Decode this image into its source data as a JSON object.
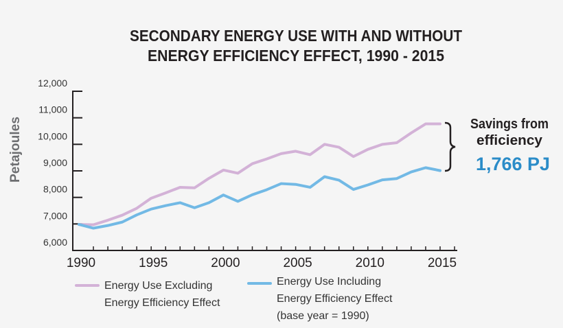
{
  "chart_data": {
    "type": "line",
    "title": [
      "SECONDARY ENERGY USE WITH AND WITHOUT",
      "ENERGY EFFICIENCY EFFECT, 1990 - 2015"
    ],
    "ylabel": "Petajoules",
    "xlabel": "",
    "ylim": [
      6000,
      12000
    ],
    "yticks": [
      "6,000",
      "7,000",
      "8,000",
      "9,000",
      "10,000",
      "11,000",
      "12,000"
    ],
    "xlim": [
      1990,
      2015
    ],
    "xticks": [
      "1990",
      "1995",
      "2000",
      "2005",
      "2010",
      "2015"
    ],
    "x": [
      1990,
      1991,
      1992,
      1993,
      1994,
      1995,
      1996,
      1997,
      1998,
      1999,
      2000,
      2001,
      2002,
      2003,
      2004,
      2005,
      2006,
      2007,
      2008,
      2009,
      2010,
      2011,
      2012,
      2013,
      2014,
      2015
    ],
    "series": [
      {
        "name": "Energy Use Excluding Energy Efficiency Effect",
        "legend_lines": [
          "Energy Use Excluding",
          "Energy Efficiency Effect"
        ],
        "color": "#d3b2d7",
        "values": [
          6980,
          6970,
          7140,
          7330,
          7590,
          7970,
          8170,
          8380,
          8360,
          8720,
          9030,
          8910,
          9270,
          9450,
          9650,
          9740,
          9610,
          10000,
          9890,
          9540,
          9810,
          10000,
          10060,
          10430,
          10770,
          10770
        ]
      },
      {
        "name": "Energy Use Including Energy Efficiency Effect (base year = 1990)",
        "legend_lines": [
          "Energy Use Including",
          "Energy Efficiency Effect",
          "(base year = 1990)"
        ],
        "color": "#72b9e5",
        "values": [
          6980,
          6840,
          6940,
          7070,
          7340,
          7560,
          7690,
          7800,
          7610,
          7800,
          8090,
          7850,
          8100,
          8290,
          8520,
          8490,
          8380,
          8780,
          8650,
          8300,
          8470,
          8660,
          8710,
          8960,
          9120,
          9010
        ]
      }
    ],
    "annotation": {
      "lines": [
        "Savings from",
        "efficiency"
      ],
      "value": "1,766 PJ",
      "value_color": "#2b8cc8"
    },
    "grid": false,
    "legend_position": "bottom"
  }
}
